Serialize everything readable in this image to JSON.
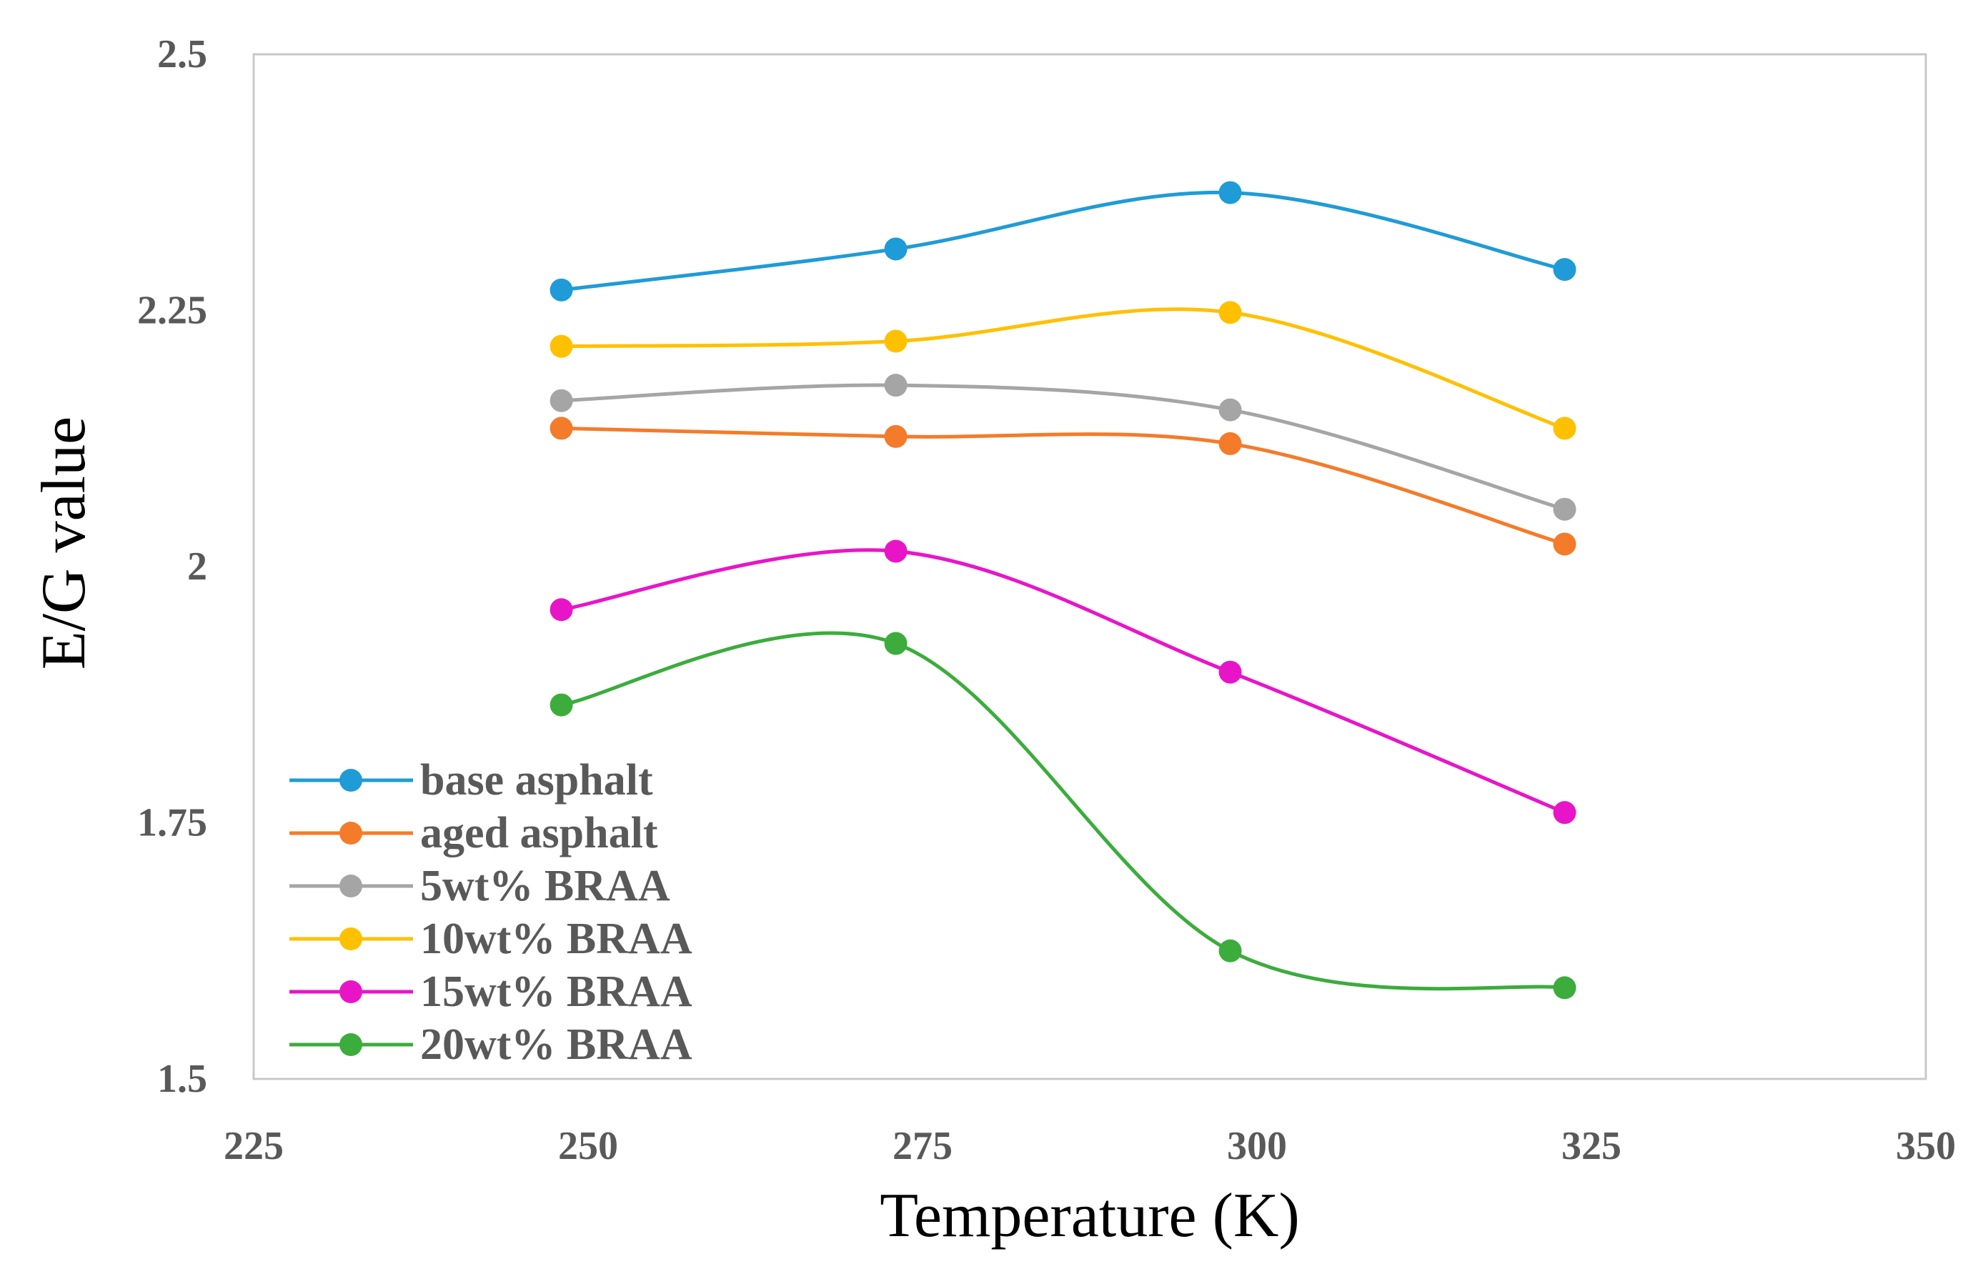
{
  "chart_data": {
    "type": "line",
    "smooth": true,
    "title": "",
    "xlabel": "Temperature (K)",
    "ylabel": "E/G value",
    "xlim": [
      225,
      350
    ],
    "ylim": [
      1.5,
      2.5
    ],
    "xticks": [
      225,
      250,
      275,
      300,
      325,
      350
    ],
    "yticks": [
      1.5,
      1.75,
      2,
      2.25,
      2.5
    ],
    "xtick_labels": [
      "225",
      "250",
      "275",
      "300",
      "325",
      "350"
    ],
    "ytick_labels": [
      "1.5",
      "1.75",
      "2",
      "2.25",
      "2.5"
    ],
    "x": [
      248,
      273,
      298,
      323
    ],
    "grid": false,
    "legend_position": "bottom-left",
    "series": [
      {
        "name": "base asphalt",
        "color": "#1F9BD7",
        "values": [
          2.27,
          2.31,
          2.365,
          2.29
        ]
      },
      {
        "name": "aged asphalt",
        "color": "#F47B2A",
        "values": [
          2.135,
          2.127,
          2.12,
          2.022
        ]
      },
      {
        "name": "5wt% BRAA",
        "color": "#A5A5A5",
        "values": [
          2.162,
          2.177,
          2.153,
          2.056
        ]
      },
      {
        "name": "10wt% BRAA",
        "color": "#FFC000",
        "values": [
          2.215,
          2.22,
          2.248,
          2.135
        ]
      },
      {
        "name": "15wt% BRAA",
        "color": "#E815C8",
        "values": [
          1.958,
          2.015,
          1.897,
          1.76
        ]
      },
      {
        "name": "20wt% BRAA",
        "color": "#3CAC3C",
        "values": [
          1.865,
          1.925,
          1.625,
          1.589
        ]
      }
    ]
  }
}
